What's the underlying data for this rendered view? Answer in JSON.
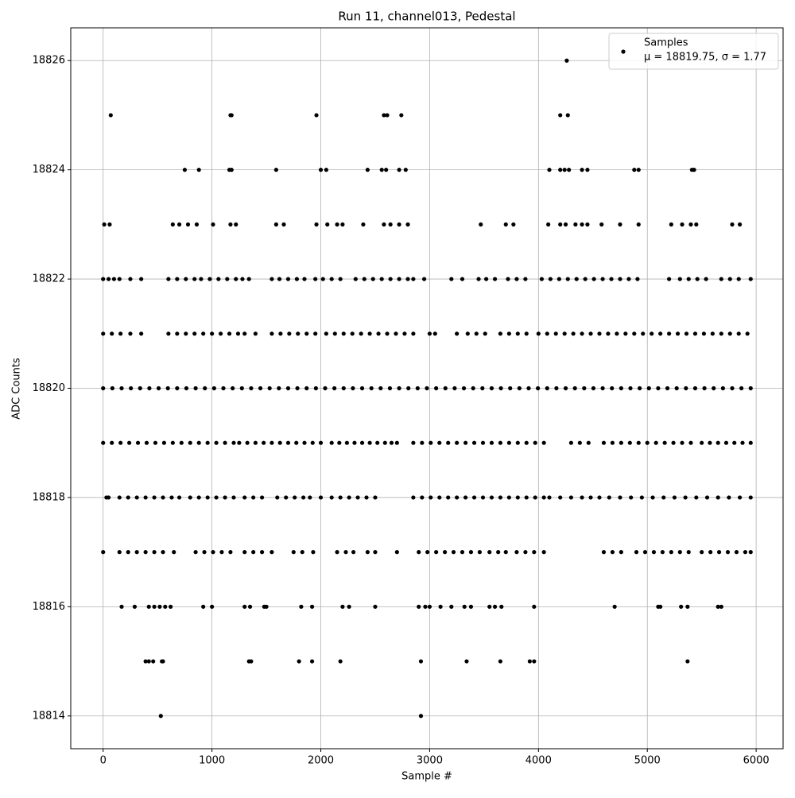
{
  "chart_data": {
    "type": "scatter",
    "title": "Run 11, channel013, Pedestal",
    "x_label": "Sample #",
    "y_label": "ADC Counts",
    "xlim": [
      -297.5,
      6247.5
    ],
    "ylim": [
      18813.4,
      18826.6
    ],
    "xticks": [
      0,
      1000,
      2000,
      3000,
      4000,
      5000,
      6000
    ],
    "yticks": [
      18814,
      18816,
      18818,
      18820,
      18822,
      18824,
      18826
    ],
    "grid": true,
    "legend_position": "upper right",
    "series": [
      {
        "name": "Samples",
        "stats_label": "μ = 18819.75, σ = 1.77",
        "color": "#000000",
        "x": [
          4260,
          70,
          1170,
          1180,
          1960,
          2580,
          2610,
          2740,
          4200,
          4270,
          750,
          880,
          1160,
          1180,
          1590,
          2000,
          2050,
          2430,
          2560,
          2600,
          2720,
          2780,
          4100,
          4200,
          4240,
          4280,
          4400,
          4450,
          4880,
          4920,
          5410,
          5430,
          10,
          60,
          640,
          700,
          780,
          860,
          1010,
          1170,
          1220,
          1590,
          1660,
          1960,
          2060,
          2150,
          2200,
          2390,
          2580,
          2640,
          2720,
          2800,
          3470,
          3700,
          3770,
          4090,
          4200,
          4250,
          4340,
          4400,
          4450,
          4580,
          4750,
          4920,
          5220,
          5320,
          5400,
          5450,
          5780,
          5850,
          0,
          50,
          100,
          150,
          250,
          350,
          600,
          680,
          760,
          840,
          900,
          980,
          1060,
          1140,
          1220,
          1280,
          1340,
          1550,
          1620,
          1700,
          1780,
          1850,
          1950,
          2020,
          2100,
          2180,
          2320,
          2400,
          2480,
          2560,
          2640,
          2720,
          2800,
          2850,
          2950,
          3200,
          3300,
          3450,
          3520,
          3600,
          3720,
          3800,
          3880,
          4030,
          4110,
          4190,
          4270,
          4350,
          4430,
          4510,
          4590,
          4670,
          4750,
          4830,
          4910,
          5200,
          5300,
          5380,
          5460,
          5540,
          5680,
          5760,
          5840,
          5950,
          0,
          80,
          160,
          250,
          350,
          600,
          680,
          760,
          840,
          920,
          1000,
          1080,
          1160,
          1240,
          1300,
          1400,
          1550,
          1630,
          1710,
          1790,
          1870,
          1950,
          2050,
          2130,
          2210,
          2290,
          2370,
          2450,
          2530,
          2610,
          2690,
          2770,
          2850,
          3000,
          3050,
          3250,
          3350,
          3430,
          3510,
          3650,
          3730,
          3810,
          3890,
          4000,
          4080,
          4160,
          4240,
          4320,
          4400,
          4480,
          4560,
          4640,
          4720,
          4800,
          4880,
          4960,
          5040,
          5120,
          5200,
          5280,
          5360,
          5440,
          5520,
          5600,
          5680,
          5760,
          5840,
          5920,
          0,
          85,
          170,
          255,
          340,
          425,
          510,
          595,
          680,
          765,
          850,
          935,
          1020,
          1105,
          1190,
          1275,
          1360,
          1445,
          1530,
          1615,
          1700,
          1785,
          1870,
          1955,
          2040,
          2125,
          2210,
          2295,
          2380,
          2465,
          2550,
          2635,
          2720,
          2805,
          2890,
          2975,
          3060,
          3145,
          3230,
          3315,
          3400,
          3485,
          3570,
          3655,
          3740,
          3825,
          3910,
          3995,
          4080,
          4165,
          4250,
          4335,
          4420,
          4505,
          4590,
          4675,
          4760,
          4845,
          4930,
          5015,
          5100,
          5185,
          5270,
          5355,
          5440,
          5525,
          5610,
          5695,
          5780,
          5865,
          5950,
          0,
          80,
          160,
          240,
          320,
          400,
          480,
          560,
          640,
          720,
          800,
          880,
          960,
          1040,
          1120,
          1200,
          1250,
          1325,
          1400,
          1475,
          1550,
          1625,
          1700,
          1775,
          1850,
          1925,
          2000,
          2100,
          2170,
          2240,
          2310,
          2380,
          2450,
          2520,
          2590,
          2650,
          2700,
          2850,
          2930,
          3010,
          3090,
          3170,
          3250,
          3330,
          3410,
          3490,
          3570,
          3650,
          3730,
          3810,
          3890,
          3970,
          4050,
          4300,
          4380,
          4460,
          4600,
          4680,
          4760,
          4840,
          4920,
          5000,
          5080,
          5160,
          5240,
          5320,
          5400,
          5500,
          5575,
          5650,
          5725,
          5800,
          5875,
          5950,
          30,
          50,
          150,
          230,
          310,
          390,
          470,
          550,
          630,
          700,
          800,
          880,
          960,
          1040,
          1120,
          1200,
          1300,
          1380,
          1460,
          1600,
          1680,
          1760,
          1840,
          1900,
          2000,
          2100,
          2180,
          2260,
          2340,
          2420,
          2500,
          2850,
          2930,
          3010,
          3090,
          3170,
          3250,
          3330,
          3410,
          3490,
          3570,
          3650,
          3730,
          3810,
          3890,
          3970,
          4050,
          4100,
          4200,
          4300,
          4400,
          4480,
          4560,
          4650,
          4750,
          4850,
          4950,
          5050,
          5150,
          5250,
          5350,
          5450,
          5550,
          5650,
          5750,
          5850,
          5950,
          0,
          150,
          230,
          310,
          390,
          470,
          550,
          650,
          850,
          930,
          1010,
          1090,
          1170,
          1300,
          1380,
          1460,
          1550,
          1750,
          1830,
          1930,
          2150,
          2230,
          2300,
          2430,
          2500,
          2700,
          2900,
          2980,
          3060,
          3140,
          3220,
          3300,
          3380,
          3460,
          3550,
          3630,
          3700,
          3800,
          3880,
          3960,
          4050,
          4600,
          4680,
          4760,
          4900,
          4980,
          5060,
          5140,
          5220,
          5300,
          5380,
          5500,
          5580,
          5660,
          5740,
          5820,
          5900,
          5950,
          170,
          290,
          420,
          470,
          520,
          570,
          620,
          920,
          1000,
          1300,
          1350,
          1480,
          1500,
          1820,
          1920,
          2200,
          2260,
          2500,
          2900,
          2960,
          3000,
          3100,
          3200,
          3320,
          3380,
          3550,
          3600,
          3660,
          3960,
          4700,
          5100,
          5120,
          5310,
          5370,
          5650,
          5680,
          390,
          420,
          460,
          540,
          550,
          1340,
          1360,
          1800,
          1920,
          2180,
          2920,
          3340,
          3650,
          3920,
          3960,
          5370,
          530,
          2920
        ],
        "values": [
          18826,
          18825,
          18825,
          18825,
          18825,
          18825,
          18825,
          18825,
          18825,
          18825,
          18824,
          18824,
          18824,
          18824,
          18824,
          18824,
          18824,
          18824,
          18824,
          18824,
          18824,
          18824,
          18824,
          18824,
          18824,
          18824,
          18824,
          18824,
          18824,
          18824,
          18824,
          18824,
          18823,
          18823,
          18823,
          18823,
          18823,
          18823,
          18823,
          18823,
          18823,
          18823,
          18823,
          18823,
          18823,
          18823,
          18823,
          18823,
          18823,
          18823,
          18823,
          18823,
          18823,
          18823,
          18823,
          18823,
          18823,
          18823,
          18823,
          18823,
          18823,
          18823,
          18823,
          18823,
          18823,
          18823,
          18823,
          18823,
          18823,
          18823,
          18822,
          18822,
          18822,
          18822,
          18822,
          18822,
          18822,
          18822,
          18822,
          18822,
          18822,
          18822,
          18822,
          18822,
          18822,
          18822,
          18822,
          18822,
          18822,
          18822,
          18822,
          18822,
          18822,
          18822,
          18822,
          18822,
          18822,
          18822,
          18822,
          18822,
          18822,
          18822,
          18822,
          18822,
          18822,
          18822,
          18822,
          18822,
          18822,
          18822,
          18822,
          18822,
          18822,
          18822,
          18822,
          18822,
          18822,
          18822,
          18822,
          18822,
          18822,
          18822,
          18822,
          18822,
          18822,
          18822,
          18822,
          18822,
          18822,
          18822,
          18822,
          18822,
          18822,
          18822,
          18821,
          18821,
          18821,
          18821,
          18821,
          18821,
          18821,
          18821,
          18821,
          18821,
          18821,
          18821,
          18821,
          18821,
          18821,
          18821,
          18821,
          18821,
          18821,
          18821,
          18821,
          18821,
          18821,
          18821,
          18821,
          18821,
          18821,
          18821,
          18821,
          18821,
          18821,
          18821,
          18821,
          18821,
          18821,
          18821,
          18821,
          18821,
          18821,
          18821,
          18821,
          18821,
          18821,
          18821,
          18821,
          18821,
          18821,
          18821,
          18821,
          18821,
          18821,
          18821,
          18821,
          18821,
          18821,
          18821,
          18821,
          18821,
          18821,
          18821,
          18821,
          18821,
          18821,
          18821,
          18821,
          18821,
          18821,
          18821,
          18820,
          18820,
          18820,
          18820,
          18820,
          18820,
          18820,
          18820,
          18820,
          18820,
          18820,
          18820,
          18820,
          18820,
          18820,
          18820,
          18820,
          18820,
          18820,
          18820,
          18820,
          18820,
          18820,
          18820,
          18820,
          18820,
          18820,
          18820,
          18820,
          18820,
          18820,
          18820,
          18820,
          18820,
          18820,
          18820,
          18820,
          18820,
          18820,
          18820,
          18820,
          18820,
          18820,
          18820,
          18820,
          18820,
          18820,
          18820,
          18820,
          18820,
          18820,
          18820,
          18820,
          18820,
          18820,
          18820,
          18820,
          18820,
          18820,
          18820,
          18820,
          18820,
          18820,
          18820,
          18820,
          18820,
          18820,
          18820,
          18820,
          18820,
          18820,
          18819,
          18819,
          18819,
          18819,
          18819,
          18819,
          18819,
          18819,
          18819,
          18819,
          18819,
          18819,
          18819,
          18819,
          18819,
          18819,
          18819,
          18819,
          18819,
          18819,
          18819,
          18819,
          18819,
          18819,
          18819,
          18819,
          18819,
          18819,
          18819,
          18819,
          18819,
          18819,
          18819,
          18819,
          18819,
          18819,
          18819,
          18819,
          18819,
          18819,
          18819,
          18819,
          18819,
          18819,
          18819,
          18819,
          18819,
          18819,
          18819,
          18819,
          18819,
          18819,
          18819,
          18819,
          18819,
          18819,
          18819,
          18819,
          18819,
          18819,
          18819,
          18819,
          18819,
          18819,
          18819,
          18819,
          18819,
          18819,
          18819,
          18819,
          18819,
          18819,
          18819,
          18819,
          18818,
          18818,
          18818,
          18818,
          18818,
          18818,
          18818,
          18818,
          18818,
          18818,
          18818,
          18818,
          18818,
          18818,
          18818,
          18818,
          18818,
          18818,
          18818,
          18818,
          18818,
          18818,
          18818,
          18818,
          18818,
          18818,
          18818,
          18818,
          18818,
          18818,
          18818,
          18818,
          18818,
          18818,
          18818,
          18818,
          18818,
          18818,
          18818,
          18818,
          18818,
          18818,
          18818,
          18818,
          18818,
          18818,
          18818,
          18818,
          18818,
          18818,
          18818,
          18818,
          18818,
          18818,
          18818,
          18818,
          18818,
          18818,
          18818,
          18818,
          18818,
          18818,
          18818,
          18818,
          18818,
          18818,
          18818,
          18817,
          18817,
          18817,
          18817,
          18817,
          18817,
          18817,
          18817,
          18817,
          18817,
          18817,
          18817,
          18817,
          18817,
          18817,
          18817,
          18817,
          18817,
          18817,
          18817,
          18817,
          18817,
          18817,
          18817,
          18817,
          18817,
          18817,
          18817,
          18817,
          18817,
          18817,
          18817,
          18817,
          18817,
          18817,
          18817,
          18817,
          18817,
          18817,
          18817,
          18817,
          18817,
          18817,
          18817,
          18817,
          18817,
          18817,
          18817,
          18817,
          18817,
          18817,
          18817,
          18817,
          18817,
          18817,
          18817,
          18817,
          18817,
          18816,
          18816,
          18816,
          18816,
          18816,
          18816,
          18816,
          18816,
          18816,
          18816,
          18816,
          18816,
          18816,
          18816,
          18816,
          18816,
          18816,
          18816,
          18816,
          18816,
          18816,
          18816,
          18816,
          18816,
          18816,
          18816,
          18816,
          18816,
          18816,
          18816,
          18816,
          18816,
          18816,
          18816,
          18816,
          18816,
          18815,
          18815,
          18815,
          18815,
          18815,
          18815,
          18815,
          18815,
          18815,
          18815,
          18815,
          18815,
          18815,
          18815,
          18815,
          18815,
          18814,
          18814
        ]
      }
    ]
  }
}
